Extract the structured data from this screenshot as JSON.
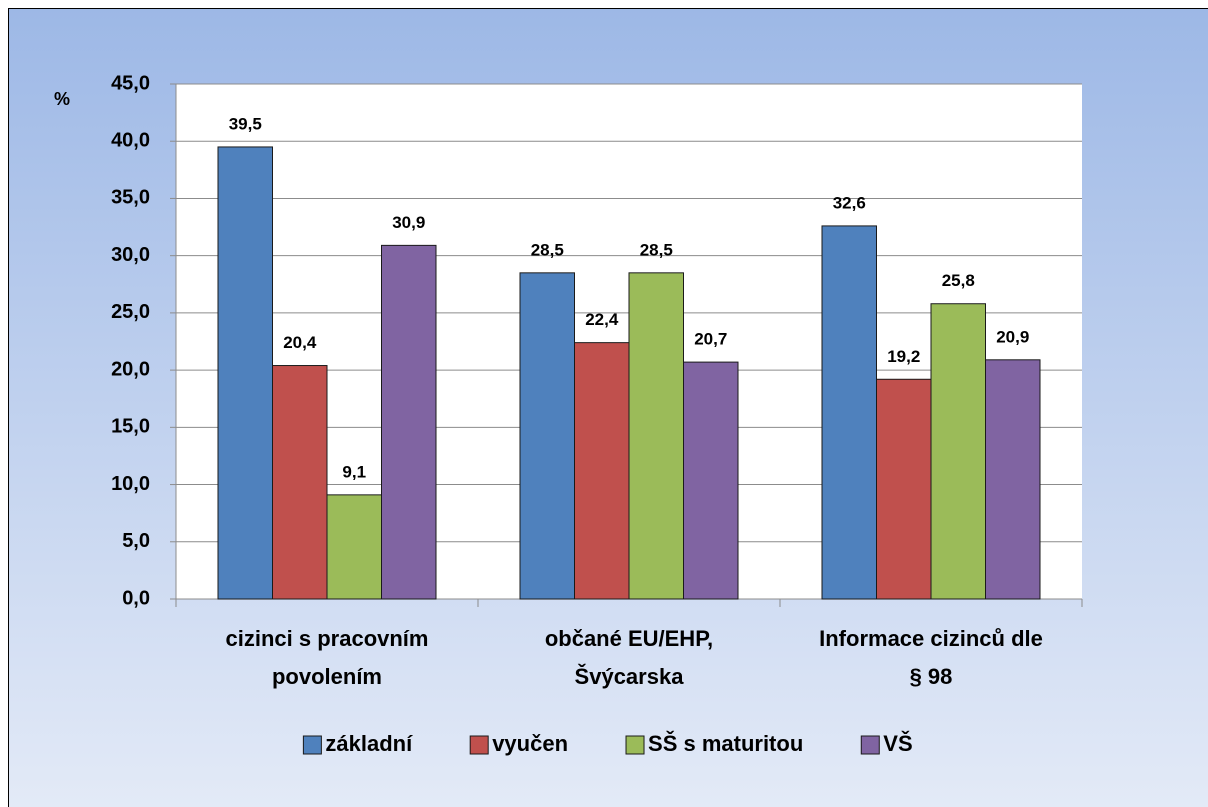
{
  "chart_data": {
    "type": "bar",
    "y_label": "%",
    "categories": [
      "cizinci s pracovním povolením",
      "občané EU/EHP, Švýcarska",
      "Informace cizinců  dle § 98"
    ],
    "series": [
      {
        "name": "základní",
        "color": "#4f81bd",
        "values": [
          39.5,
          28.5,
          32.6
        ],
        "value_labels": [
          "39,5",
          "28,5",
          "32,6"
        ]
      },
      {
        "name": "vyučen",
        "color": "#c0504d",
        "values": [
          20.4,
          22.4,
          19.2
        ],
        "value_labels": [
          "20,4",
          "22,4",
          "19,2"
        ]
      },
      {
        "name": "SŠ s maturitou",
        "color": "#9bbb59",
        "values": [
          9.1,
          28.5,
          25.8
        ],
        "value_labels": [
          "9,1",
          "28,5",
          "25,8"
        ]
      },
      {
        "name": "VŠ",
        "color": "#8064a2",
        "values": [
          30.9,
          20.7,
          20.9
        ],
        "value_labels": [
          "30,9",
          "20,7",
          "20,9"
        ]
      }
    ],
    "ylim": [
      0,
      45
    ],
    "yticks": [
      {
        "value": 0,
        "label": "0,0"
      },
      {
        "value": 5,
        "label": "5,0"
      },
      {
        "value": 10,
        "label": "10,0"
      },
      {
        "value": 15,
        "label": "15,0"
      },
      {
        "value": 20,
        "label": "20,0"
      },
      {
        "value": 25,
        "label": "25,0"
      },
      {
        "value": 30,
        "label": "30,0"
      },
      {
        "value": 35,
        "label": "35,0"
      },
      {
        "value": 40,
        "label": "40,0"
      },
      {
        "value": 45,
        "label": "45,0"
      }
    ],
    "grid": true,
    "legend": "bottom"
  }
}
